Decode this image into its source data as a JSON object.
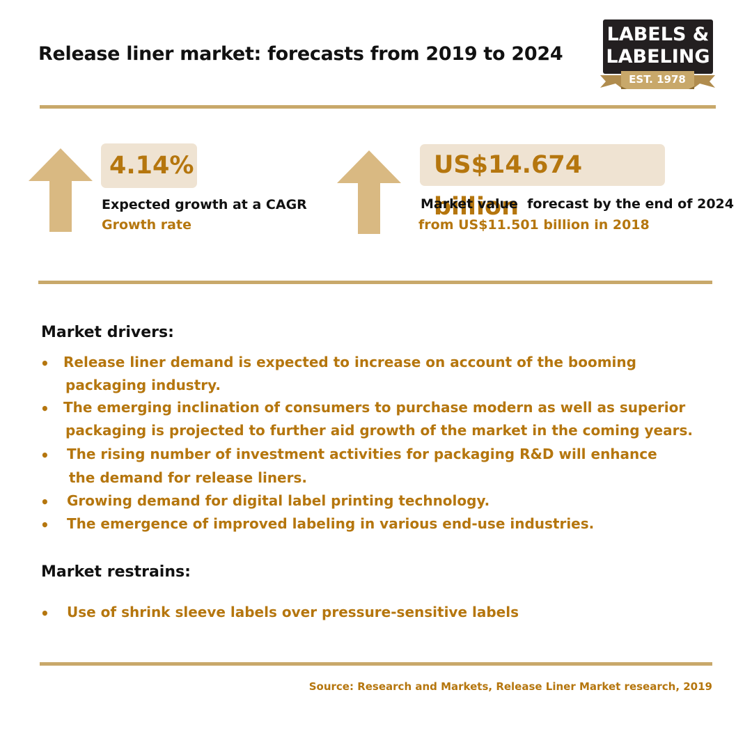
{
  "title": "Release liner market: forecasts from 2019 to 2024",
  "logo": {
    "line1": "LABELS &",
    "line2": "LABELING",
    "est": "EST. 1978",
    "colors": {
      "box": "#231f20",
      "ribbon": "#c8a86a"
    }
  },
  "stats": [
    {
      "icon": "up-arrow-icon",
      "value": "4.14%",
      "label": "Expected growth at a CAGR",
      "sub": "Growth rate"
    },
    {
      "icon": "up-arrow-icon",
      "value": "US$14.674 billion",
      "label": "Market value  forecast by the end of 2024",
      "sub": "from US$11.501 billion in 2018"
    }
  ],
  "drivers": {
    "heading": "Market drivers:",
    "items": [
      {
        "line1": "Release liner demand is expected to increase on account of the booming",
        "line2": "packaging industry."
      },
      {
        "line1": "The emerging inclination of consumers to purchase modern as well as superior",
        "line2": "packaging is projected to further aid growth of the market in the coming years."
      },
      {
        "line1": "The rising number of investment activities for packaging R&D will enhance",
        "line2": "the demand for release liners."
      },
      {
        "line1": "Growing demand for digital label printing technology."
      },
      {
        "line1": "The emergence of improved labeling in various end-use industries."
      }
    ]
  },
  "restrains": {
    "heading": "Market restrains:",
    "items": [
      {
        "line1": "Use of shrink sleeve labels over pressure-sensitive labels"
      }
    ]
  },
  "bullet_char": "•",
  "source": "Source: Research and Markets, Release Liner Market research, 2019",
  "colors": {
    "accent": "#b5760e",
    "rule": "#c8a86a",
    "arrow": "#d9b982",
    "stat_box": "#efe3d2"
  }
}
